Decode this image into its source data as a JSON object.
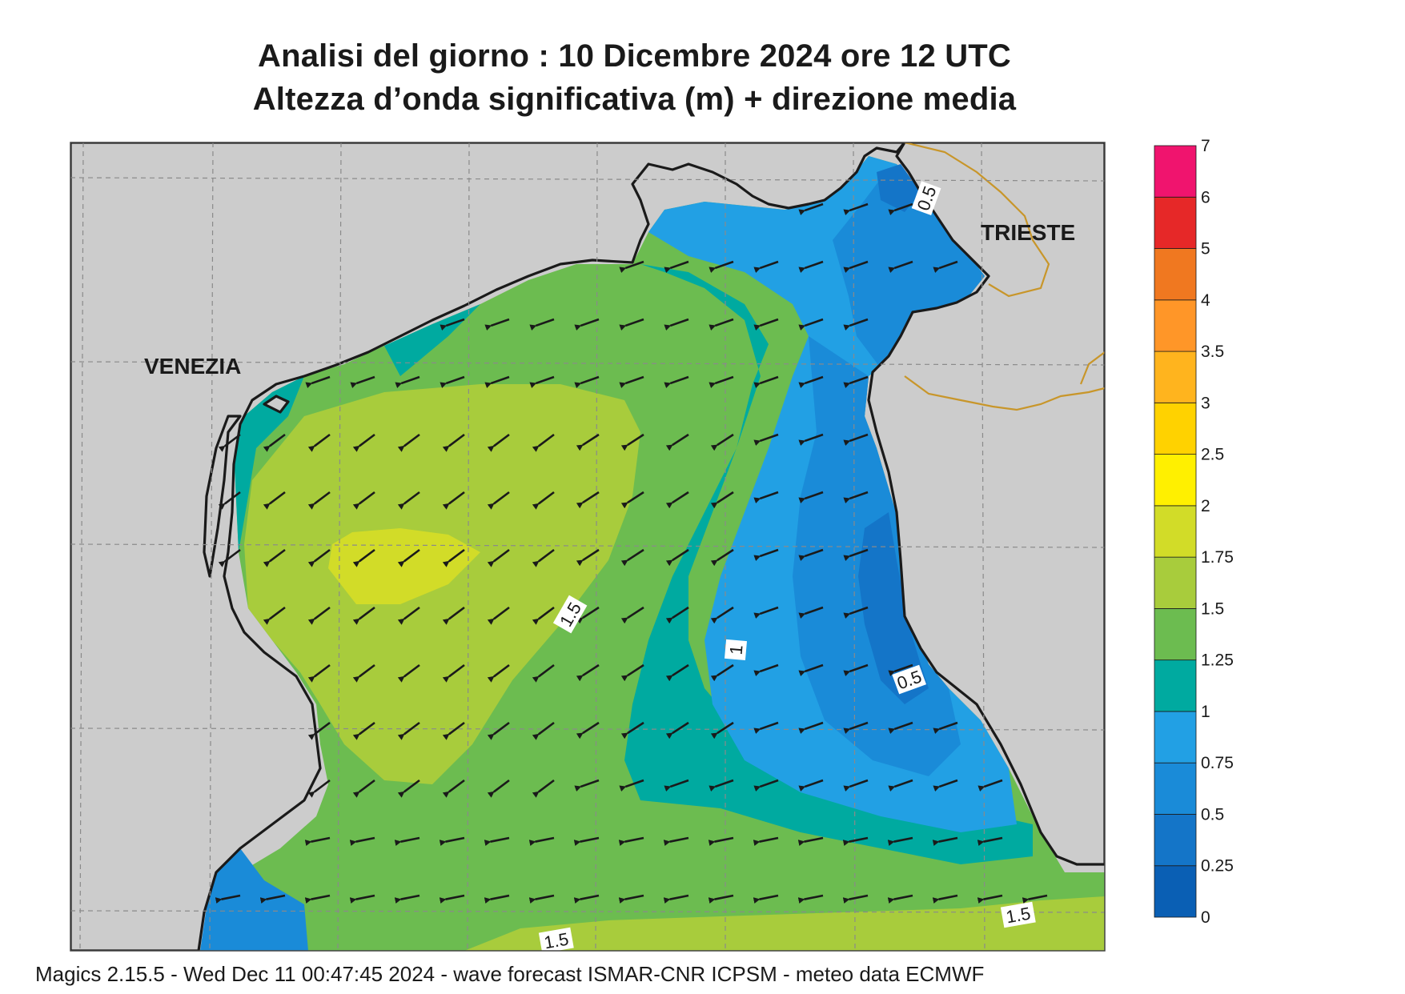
{
  "header": {
    "title_line1": "Analisi del giorno :  10 Dicembre  2024   ore 12 UTC",
    "title_line2": "Altezza d’onda significativa (m) + direzione media"
  },
  "map": {
    "labels": {
      "venezia": "VENEZIA",
      "trieste": "TRIESTE"
    },
    "contour_labels": [
      "0.5",
      "1.5",
      "1",
      "0.5",
      "1.5",
      "1.5"
    ],
    "colors": {
      "land": "#cccccc",
      "coastline": "#1a1a1a",
      "border": "#c8962a",
      "grid": "#8a8a8a"
    },
    "arrow_direction": "west-southwest"
  },
  "legend": {
    "levels": [
      "0",
      "0.25",
      "0.5",
      "0.75",
      "1",
      "1.25",
      "1.5",
      "1.75",
      "2",
      "2.5",
      "3",
      "3.5",
      "4",
      "5",
      "6",
      "7"
    ],
    "colors": [
      "#0a5fb4",
      "#1475c8",
      "#1a8bd8",
      "#22a0e4",
      "#00aaa0",
      "#6cbc50",
      "#a8cc3c",
      "#d2dc28",
      "#fff000",
      "#ffd200",
      "#ffb41e",
      "#ff9628",
      "#f07820",
      "#e62828",
      "#f0146e"
    ]
  },
  "footer": {
    "text": "Magics 2.15.5 - Wed Dec 11 00:47:45 2024 - wave forecast  ISMAR-CNR  ICPSM - meteo data    ECMWF"
  }
}
